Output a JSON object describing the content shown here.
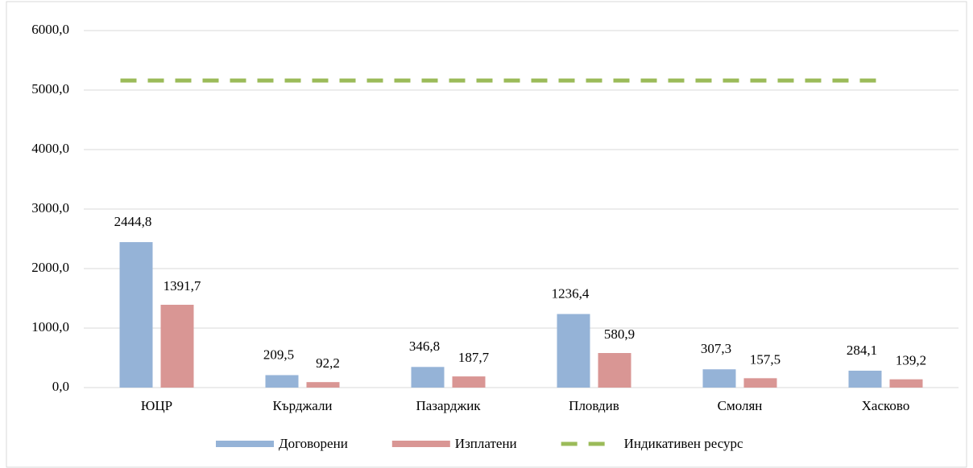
{
  "chart_data": {
    "type": "bar",
    "categories": [
      "ЮЦР",
      "Кърджали",
      "Пазарджик",
      "Пловдив",
      "Смолян",
      "Хасково"
    ],
    "series": [
      {
        "name": "Договорени",
        "color": "#95b3d7",
        "values": [
          2444.8,
          209.5,
          346.8,
          1236.4,
          307.3,
          284.1
        ],
        "value_labels": [
          "2444,8",
          "209,5",
          "346,8",
          "1236,4",
          "307,3",
          "284,1"
        ]
      },
      {
        "name": "Изплатени",
        "color": "#d99694",
        "values": [
          1391.7,
          92.2,
          187.7,
          580.9,
          157.5,
          139.2
        ],
        "value_labels": [
          "1391,7",
          "92,2",
          "187,7",
          "580,9",
          "157,5",
          "139,2"
        ]
      },
      {
        "name": "Индикативен ресурс",
        "color": "#9bbb59",
        "type": "line",
        "dashed": true,
        "values": [
          5160,
          5160,
          5160,
          5160,
          5160,
          5160
        ]
      }
    ],
    "ylim": [
      0,
      6000
    ],
    "yticks": [
      {
        "value": 0,
        "label": "0,0"
      },
      {
        "value": 1000,
        "label": "1000,0"
      },
      {
        "value": 2000,
        "label": "2000,0"
      },
      {
        "value": 3000,
        "label": "3000,0"
      },
      {
        "value": 4000,
        "label": "4000,0"
      },
      {
        "value": 5000,
        "label": "5000,0"
      },
      {
        "value": 6000,
        "label": "6000,0"
      }
    ],
    "grid": true,
    "legend": "bottom"
  }
}
